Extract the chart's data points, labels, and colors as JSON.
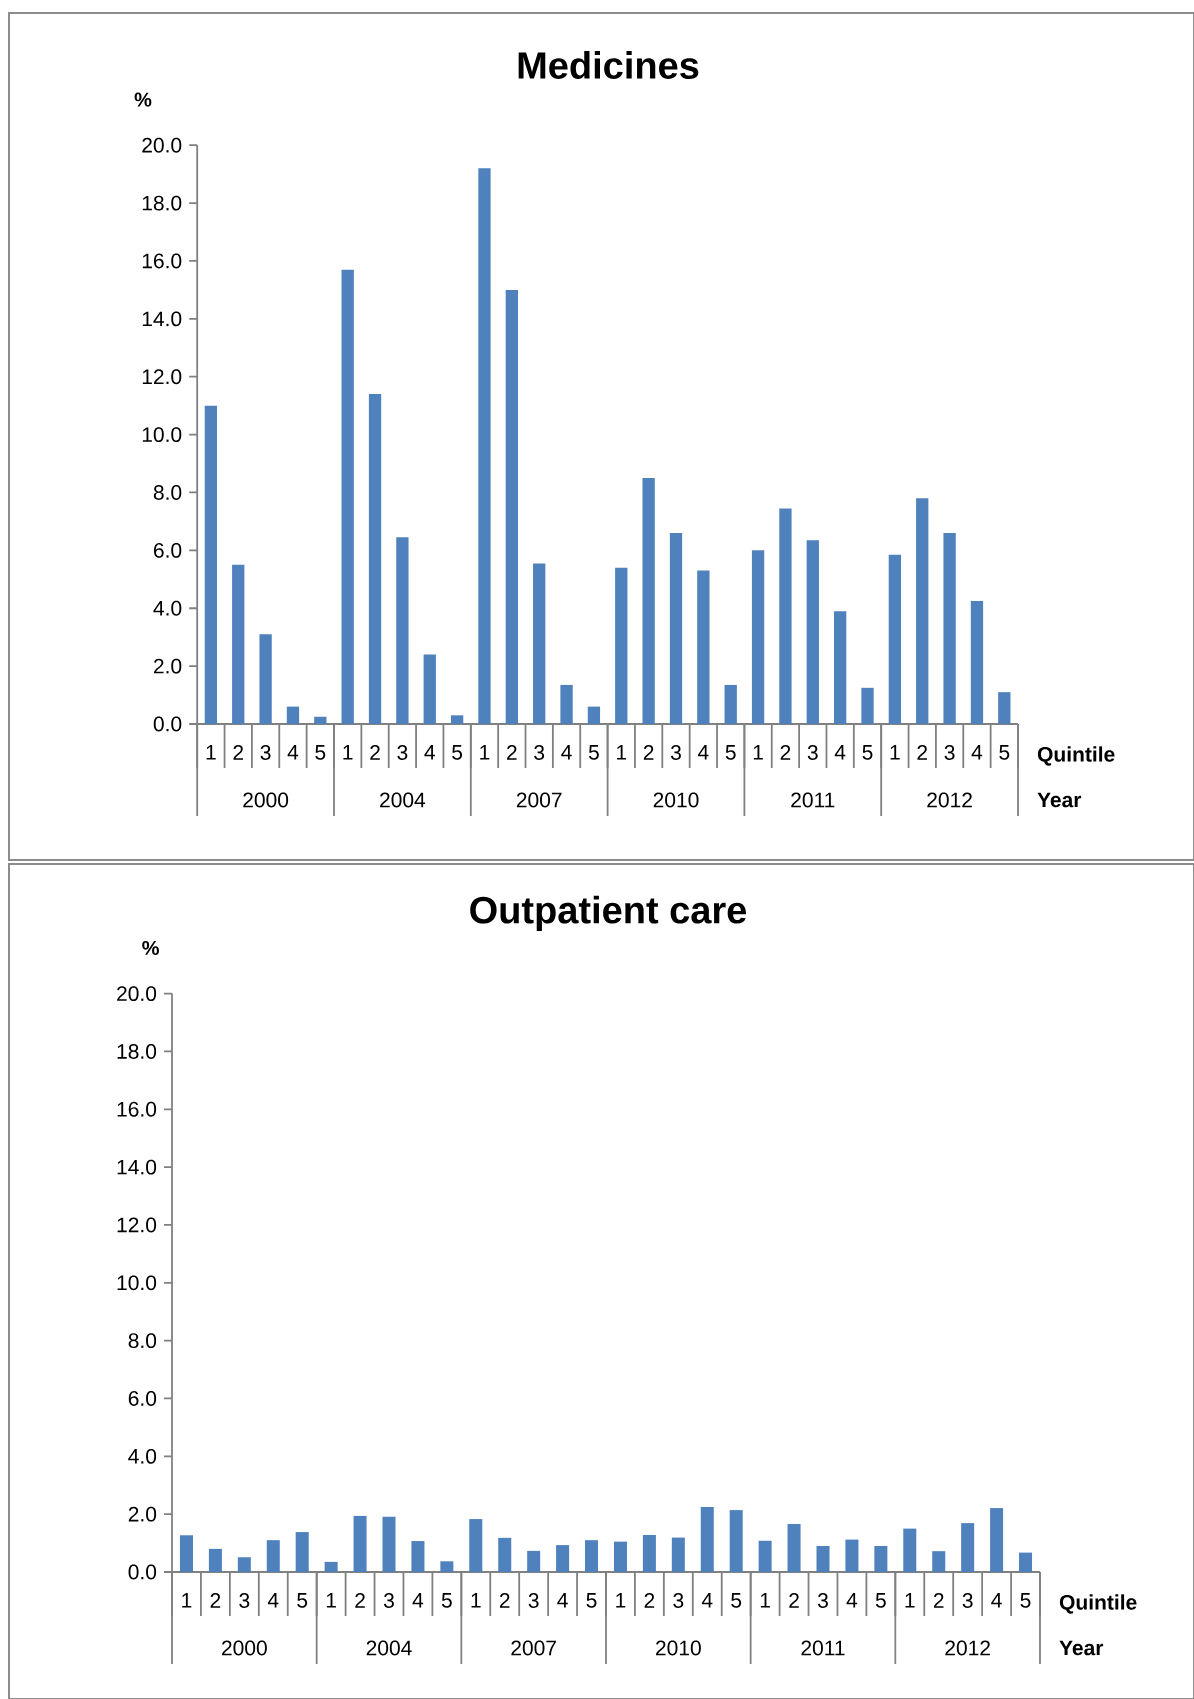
{
  "chart_data": [
    {
      "type": "bar",
      "title": "Medicines",
      "ylabel": "%",
      "xlabel": "Quintile",
      "color": "#4f81bd",
      "categories": [
        "1",
        "2",
        "3",
        "4",
        "5",
        "1",
        "2",
        "3",
        "4",
        "5",
        "1",
        "2",
        "3",
        "4",
        "5",
        "1",
        "2",
        "3",
        "4",
        "5",
        "1",
        "2",
        "3",
        "4",
        "5",
        "1",
        "2",
        "3",
        "4",
        "5"
      ],
      "values": [
        11.0,
        5.5,
        3.1,
        0.6,
        0.25,
        15.7,
        11.4,
        6.45,
        2.4,
        0.3,
        19.2,
        15.0,
        5.55,
        1.35,
        0.6,
        5.4,
        8.5,
        6.6,
        5.3,
        1.35,
        6.0,
        7.45,
        6.35,
        3.9,
        1.25,
        5.85,
        7.8,
        6.6,
        4.25,
        1.1
      ],
      "ylim": [
        0,
        20
      ],
      "yticks": [
        {
          "value": 0,
          "label": "0.0"
        },
        {
          "value": 2,
          "label": "2.0"
        },
        {
          "value": 4,
          "label": "4.0"
        },
        {
          "value": 6,
          "label": "6.0"
        },
        {
          "value": 8,
          "label": "8.0"
        },
        {
          "value": 10,
          "label": "10.0"
        },
        {
          "value": 12,
          "label": "12.0"
        },
        {
          "value": 14,
          "label": "14.0"
        },
        {
          "value": 16,
          "label": "16.0"
        },
        {
          "value": 18,
          "label": "18.0"
        },
        {
          "value": 20,
          "label": "20.0"
        }
      ],
      "annotations": [
        "2000",
        "2004",
        "2007",
        "2010",
        "2011",
        "2012",
        "Year"
      ]
    },
    {
      "type": "bar",
      "title": "Outpatient care",
      "ylabel": "%",
      "xlabel": "Quintile",
      "color": "#4f81bd",
      "categories": [
        "1",
        "2",
        "3",
        "4",
        "5",
        "1",
        "2",
        "3",
        "4",
        "5",
        "1",
        "2",
        "3",
        "4",
        "5",
        "1",
        "2",
        "3",
        "4",
        "5",
        "1",
        "2",
        "3",
        "4",
        "5",
        "1",
        "2",
        "3",
        "4",
        "5"
      ],
      "values": [
        1.27,
        0.8,
        0.51,
        1.1,
        1.38,
        0.35,
        1.94,
        1.91,
        1.07,
        0.37,
        1.83,
        1.18,
        0.73,
        0.93,
        1.1,
        1.05,
        1.28,
        1.19,
        2.25,
        2.14,
        1.08,
        1.66,
        0.9,
        1.12,
        0.9,
        1.5,
        0.72,
        1.69,
        2.21,
        0.67
      ],
      "ylim": [
        0,
        20
      ],
      "yticks": [
        {
          "value": 0,
          "label": "0.0"
        },
        {
          "value": 2,
          "label": "2.0"
        },
        {
          "value": 4,
          "label": "4.0"
        },
        {
          "value": 6,
          "label": "6.0"
        },
        {
          "value": 8,
          "label": "8.0"
        },
        {
          "value": 10,
          "label": "10.0"
        },
        {
          "value": 12,
          "label": "12.0"
        },
        {
          "value": 14,
          "label": "14.0"
        },
        {
          "value": 16,
          "label": "16.0"
        },
        {
          "value": 18,
          "label": "18.0"
        },
        {
          "value": 20,
          "label": "20.0"
        }
      ],
      "annotations": [
        "2000",
        "2004",
        "2007",
        "2010",
        "2011",
        "2012",
        "Year"
      ]
    }
  ]
}
